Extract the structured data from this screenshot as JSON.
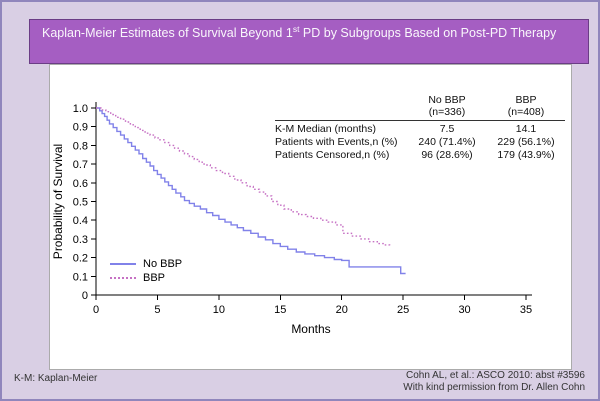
{
  "title": {
    "part1": "Kaplan-Meier Estimates of Survival Beyond 1",
    "superscript": "st",
    "part2": " PD by Subgroups Based on Post-PD Therapy"
  },
  "footer": {
    "left": "K-M: Kaplan-Meier",
    "right_line1": "Cohn AL, et al.: ASCO 2010: abst #3596",
    "right_line2": "With kind permission from Dr. Allen Cohn"
  },
  "table": {
    "columns": [
      "No BBP",
      "BBP"
    ],
    "column_sub": [
      "(n=336)",
      "(n=408)"
    ],
    "rows": [
      {
        "label": "K-M Median (months)",
        "no_bbp": "7.5",
        "bbp": "14.1"
      },
      {
        "label": "Patients with Events,n (%)",
        "no_bbp": "240 (71.4%)",
        "bbp": "229 (56.1%)"
      },
      {
        "label": "Patients Censored,n (%)",
        "no_bbp": "96 (28.6%)",
        "bbp": "179 (43.9%)"
      }
    ]
  },
  "colors": {
    "background": "#d9cfe4",
    "frame_border": "#9086bc",
    "title_band": "#a55ec2",
    "title_band_border": "#6b3d86",
    "no_bbp_line": "#8182e9",
    "bbp_line": "#c671c4",
    "axis": "#000000"
  },
  "chart_data": {
    "type": "line",
    "subtype": "kaplan-meier-step",
    "title": "",
    "xlabel": "Months",
    "ylabel": "Probability of Survival",
    "xlim": [
      0,
      35
    ],
    "ylim": [
      0,
      1.0
    ],
    "grid": false,
    "legend_position": "lower-left",
    "xticks": [
      {
        "v": 0,
        "label": "0"
      },
      {
        "v": 5,
        "label": "5"
      },
      {
        "v": 10,
        "label": "10"
      },
      {
        "v": 15,
        "label": "15"
      },
      {
        "v": 20,
        "label": "20"
      },
      {
        "v": 25,
        "label": "25"
      },
      {
        "v": 30,
        "label": "30"
      },
      {
        "v": 35,
        "label": "35"
      }
    ],
    "yticks": [
      {
        "v": 0,
        "label": "0"
      },
      {
        "v": 0.1,
        "label": "0.1"
      },
      {
        "v": 0.2,
        "label": "0.2"
      },
      {
        "v": 0.3,
        "label": "0.3"
      },
      {
        "v": 0.4,
        "label": "0.4"
      },
      {
        "v": 0.5,
        "label": "0.5"
      },
      {
        "v": 0.6,
        "label": "0.6"
      },
      {
        "v": 0.7,
        "label": "0.7"
      },
      {
        "v": 0.8,
        "label": "0.8"
      },
      {
        "v": 0.9,
        "label": "0.9"
      },
      {
        "v": 1.0,
        "label": "1.0"
      }
    ],
    "legend": [
      {
        "name": "No BBP",
        "color": "#8182e9",
        "style": "solid"
      },
      {
        "name": "BBP",
        "color": "#c671c4",
        "style": "dotted"
      }
    ],
    "series": [
      {
        "name": "No BBP",
        "color": "#8182e9",
        "style": "solid",
        "km_median_months": 7.5,
        "points": [
          [
            0,
            1.0
          ],
          [
            0.3,
            0.985
          ],
          [
            0.5,
            0.97
          ],
          [
            0.7,
            0.955
          ],
          [
            0.9,
            0.935
          ],
          [
            1.1,
            0.915
          ],
          [
            1.4,
            0.895
          ],
          [
            1.7,
            0.875
          ],
          [
            2.0,
            0.855
          ],
          [
            2.3,
            0.835
          ],
          [
            2.6,
            0.815
          ],
          [
            2.9,
            0.795
          ],
          [
            3.2,
            0.775
          ],
          [
            3.5,
            0.755
          ],
          [
            3.8,
            0.73
          ],
          [
            4.1,
            0.71
          ],
          [
            4.4,
            0.69
          ],
          [
            4.7,
            0.665
          ],
          [
            5.0,
            0.645
          ],
          [
            5.3,
            0.625
          ],
          [
            5.6,
            0.605
          ],
          [
            5.9,
            0.585
          ],
          [
            6.2,
            0.565
          ],
          [
            6.5,
            0.545
          ],
          [
            6.9,
            0.525
          ],
          [
            7.2,
            0.505
          ],
          [
            7.6,
            0.49
          ],
          [
            8.0,
            0.475
          ],
          [
            8.5,
            0.46
          ],
          [
            9.0,
            0.44
          ],
          [
            9.5,
            0.425
          ],
          [
            10.0,
            0.405
          ],
          [
            10.5,
            0.39
          ],
          [
            11.0,
            0.375
          ],
          [
            11.5,
            0.36
          ],
          [
            12.0,
            0.345
          ],
          [
            12.6,
            0.33
          ],
          [
            13.2,
            0.31
          ],
          [
            13.8,
            0.295
          ],
          [
            14.4,
            0.275
          ],
          [
            15.0,
            0.26
          ],
          [
            15.6,
            0.245
          ],
          [
            16.3,
            0.23
          ],
          [
            17.0,
            0.22
          ],
          [
            17.8,
            0.21
          ],
          [
            18.6,
            0.2
          ],
          [
            19.4,
            0.19
          ],
          [
            20.0,
            0.185
          ],
          [
            20.6,
            0.15
          ],
          [
            24.6,
            0.15
          ],
          [
            24.8,
            0.115
          ],
          [
            25.2,
            0.115
          ]
        ]
      },
      {
        "name": "BBP",
        "color": "#c671c4",
        "style": "dotted",
        "km_median_months": 14.1,
        "points": [
          [
            0,
            1.0
          ],
          [
            0.4,
            0.99
          ],
          [
            0.8,
            0.98
          ],
          [
            1.2,
            0.965
          ],
          [
            1.6,
            0.95
          ],
          [
            2.0,
            0.94
          ],
          [
            2.4,
            0.925
          ],
          [
            2.8,
            0.91
          ],
          [
            3.2,
            0.895
          ],
          [
            3.6,
            0.88
          ],
          [
            4.0,
            0.865
          ],
          [
            4.4,
            0.855
          ],
          [
            4.8,
            0.84
          ],
          [
            5.2,
            0.83
          ],
          [
            5.6,
            0.815
          ],
          [
            6.0,
            0.8
          ],
          [
            6.4,
            0.785
          ],
          [
            6.8,
            0.77
          ],
          [
            7.2,
            0.755
          ],
          [
            7.6,
            0.74
          ],
          [
            8.0,
            0.725
          ],
          [
            8.4,
            0.71
          ],
          [
            8.8,
            0.695
          ],
          [
            9.3,
            0.68
          ],
          [
            9.8,
            0.665
          ],
          [
            10.3,
            0.65
          ],
          [
            10.8,
            0.635
          ],
          [
            11.3,
            0.615
          ],
          [
            11.8,
            0.6
          ],
          [
            12.3,
            0.58
          ],
          [
            12.8,
            0.565
          ],
          [
            13.3,
            0.55
          ],
          [
            13.8,
            0.53
          ],
          [
            14.3,
            0.5
          ],
          [
            14.8,
            0.48
          ],
          [
            15.3,
            0.46
          ],
          [
            15.9,
            0.445
          ],
          [
            16.5,
            0.43
          ],
          [
            17.1,
            0.42
          ],
          [
            17.7,
            0.41
          ],
          [
            18.3,
            0.4
          ],
          [
            18.9,
            0.39
          ],
          [
            19.5,
            0.375
          ],
          [
            20.1,
            0.33
          ],
          [
            20.8,
            0.315
          ],
          [
            21.5,
            0.3
          ],
          [
            22.2,
            0.285
          ],
          [
            22.9,
            0.275
          ],
          [
            23.5,
            0.268
          ],
          [
            23.9,
            0.255
          ]
        ]
      }
    ]
  }
}
